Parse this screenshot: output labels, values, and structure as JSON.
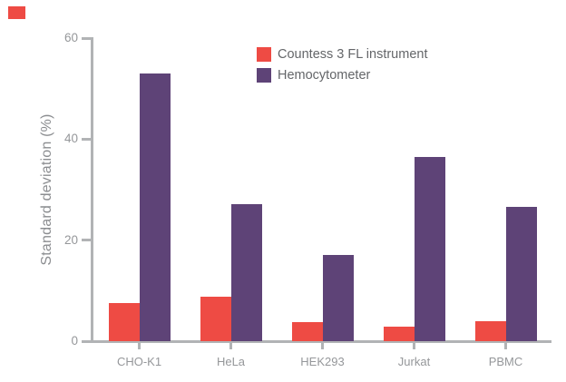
{
  "accent_square": {
    "color": "#EE4B44"
  },
  "chart_data": {
    "type": "bar",
    "title": "",
    "xlabel": "",
    "ylabel": "Standard deviation (%)",
    "ylim": [
      0,
      60
    ],
    "yticks": [
      0,
      20,
      40,
      60
    ],
    "grid": false,
    "legend_position": "inside-top-center",
    "categories": [
      "CHO-K1",
      "HeLa",
      "HEK293",
      "Jurkat",
      "PBMC"
    ],
    "series": [
      {
        "name": "Countess 3 FL instrument",
        "color": "#EE4B44",
        "values": [
          7.5,
          8.8,
          3.7,
          2.8,
          4.0
        ]
      },
      {
        "name": "Hemocytometer",
        "color": "#5E4377",
        "values": [
          53.0,
          27.2,
          17.1,
          36.4,
          26.5
        ]
      }
    ],
    "colors": {
      "axis": "#B1B3B5",
      "tick_labels": "#95979A",
      "axis_title": "#8B8D90",
      "legend_text": "#646669"
    }
  }
}
